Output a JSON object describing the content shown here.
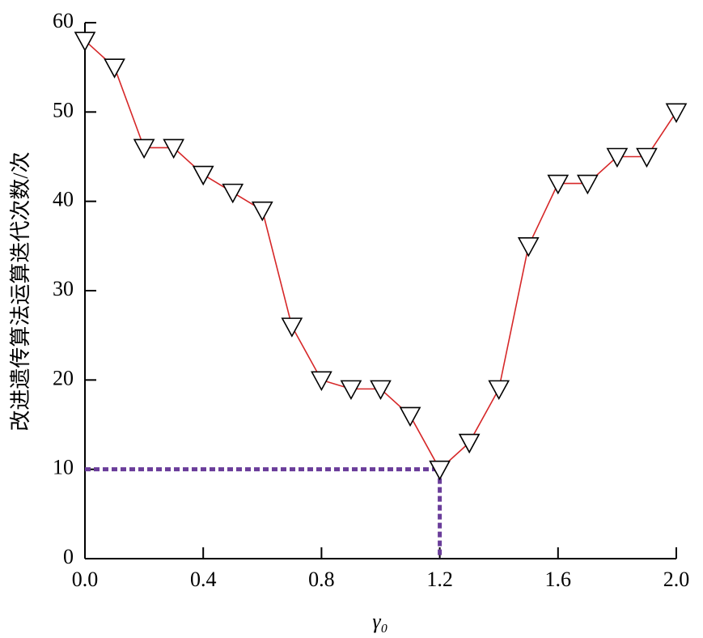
{
  "chart_data": {
    "type": "line",
    "xlabel": "γ₀",
    "ylabel": "改进遗传算法运算迭代次数/次",
    "x": [
      0.0,
      0.1,
      0.2,
      0.3,
      0.4,
      0.5,
      0.6,
      0.7,
      0.8,
      0.9,
      1.0,
      1.1,
      1.2,
      1.3,
      1.4,
      1.5,
      1.6,
      1.7,
      1.8,
      1.9,
      2.0
    ],
    "series": [
      {
        "color": "#d62728",
        "values": [
          58,
          55,
          46,
          46,
          43,
          41,
          39,
          26,
          20,
          19,
          19,
          16,
          10,
          13,
          19,
          35,
          42,
          42,
          45,
          45,
          50
        ]
      }
    ],
    "xlim": [
      0,
      2.0
    ],
    "ylim": [
      0,
      60
    ],
    "xticks": [
      {
        "value": 0,
        "label": "0.0"
      },
      0.4,
      0.8,
      1.2,
      1.6,
      {
        "value": 2.0,
        "label": "2.0"
      }
    ],
    "yticks": [
      0,
      10,
      20,
      30,
      40,
      50,
      60
    ],
    "guide": {
      "x": 1.2,
      "y": 10,
      "color": "#6a3d9a"
    }
  }
}
